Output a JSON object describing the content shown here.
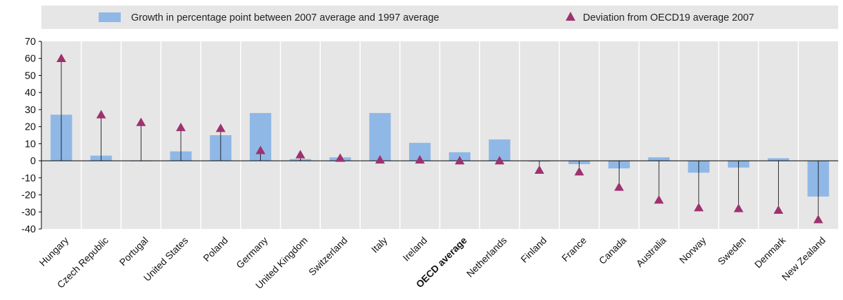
{
  "chart_data": {
    "type": "bar",
    "categories": [
      "Hungary",
      "Czech Republic",
      "Portugal",
      "United States",
      "Poland",
      "Germany",
      "United Kingdom",
      "Switzerland",
      "Italy",
      "Ireland",
      "OECD average",
      "Netherlands",
      "Finland",
      "France",
      "Canada",
      "Australia",
      "Norway",
      "Sweden",
      "Denmark",
      "New Zealand"
    ],
    "highlight_category": "OECD average",
    "series": [
      {
        "name": "Growth in percentage point between 2007 average and 1997 average",
        "kind": "bar",
        "color": "#8fb8e6",
        "values": [
          27,
          3,
          0,
          5.5,
          15,
          28,
          1,
          2,
          28,
          10.5,
          5,
          12.5,
          -0.5,
          -2,
          -4.5,
          2,
          -7,
          -4,
          1.5,
          -21
        ]
      },
      {
        "name": "Deviation from OECD19 average 2007",
        "kind": "marker",
        "color": "#9e3270",
        "values": [
          60,
          27,
          22.5,
          19.5,
          19,
          6,
          3.5,
          1.5,
          0.5,
          0.5,
          0,
          0,
          -5.5,
          -6.5,
          -15.5,
          -23,
          -27.5,
          -28,
          -29,
          -34.5
        ]
      }
    ],
    "ylim": [
      -40,
      70
    ],
    "yticks": [
      -40,
      -30,
      -20,
      -10,
      0,
      10,
      20,
      30,
      40,
      50,
      60,
      70
    ],
    "grid": false,
    "legend": "top"
  }
}
